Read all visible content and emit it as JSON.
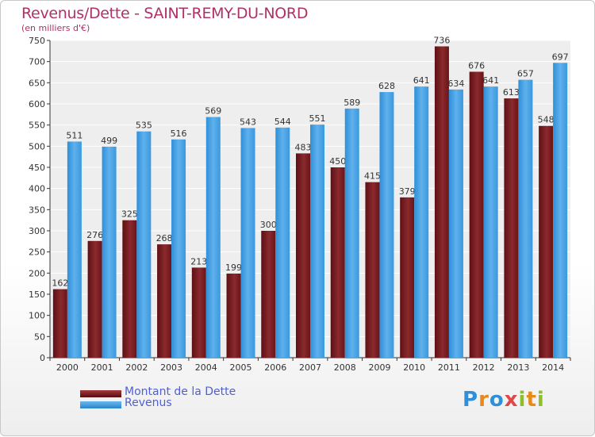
{
  "chart_data": {
    "type": "bar",
    "title": "Revenus/Dette - SAINT-REMY-DU-NORD",
    "subtitle": "(en milliers d'€)",
    "categories": [
      "2000",
      "2001",
      "2002",
      "2003",
      "2004",
      "2005",
      "2006",
      "2007",
      "2008",
      "2009",
      "2010",
      "2011",
      "2012",
      "2013",
      "2014"
    ],
    "series": [
      {
        "name": "Montant de la Dette",
        "color": "#7a1e22",
        "values": [
          162,
          276,
          325,
          268,
          213,
          199,
          300,
          483,
          450,
          415,
          379,
          736,
          676,
          613,
          548
        ]
      },
      {
        "name": "Revenus",
        "color": "#3a9be0",
        "values": [
          511,
          499,
          535,
          516,
          569,
          543,
          544,
          551,
          589,
          628,
          641,
          634,
          641,
          657,
          697
        ]
      }
    ],
    "ylim": [
      0,
      750
    ],
    "yticks": [
      0,
      50,
      100,
      150,
      200,
      250,
      300,
      350,
      400,
      450,
      500,
      550,
      600,
      650,
      700,
      750
    ],
    "grid": true,
    "legend_position": "bottom-left"
  },
  "logo": {
    "letters": [
      "P",
      "r",
      "o",
      "x",
      "i",
      "t",
      "i"
    ],
    "colors": [
      "#2f8fd8",
      "#e58a1f",
      "#2f8fd8",
      "#e04848",
      "#8cbf2a",
      "#e58a1f",
      "#8cbf2a"
    ]
  }
}
